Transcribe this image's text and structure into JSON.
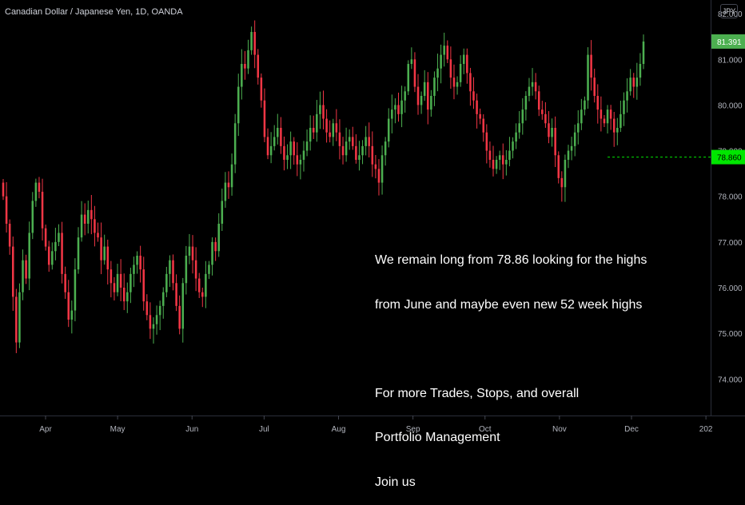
{
  "header": {
    "symbol_title": "Canadian Dollar / Japanese Yen, 1D, OANDA",
    "currency_button": "JPY"
  },
  "annotation": {
    "lines": [
      "We remain long from 78.86 looking for the highs",
      "from June and maybe even new 52 week highs",
      "",
      "For more Trades, Stops, and overall",
      "Portfolio Management",
      "Join us"
    ]
  },
  "colors": {
    "background": "#000000",
    "up": "#4caf50",
    "down": "#f23645",
    "axis_text": "#b2b5be",
    "last_price_bg": "#4caf50",
    "entry_line": "#00e600"
  },
  "chart_data": {
    "type": "candlestick",
    "title": "Canadian Dollar / Japanese Yen, 1D, OANDA",
    "ylim": [
      73.2,
      82.3
    ],
    "y_ticks": [
      "74.000",
      "75.000",
      "76.000",
      "77.000",
      "78.000",
      "79.000",
      "80.000",
      "81.000",
      "82.000"
    ],
    "x_ticks": [
      {
        "label": "Apr",
        "day": 23
      },
      {
        "label": "May",
        "day": 53
      },
      {
        "label": "Jun",
        "day": 84
      },
      {
        "label": "Jul",
        "day": 114
      },
      {
        "label": "Aug",
        "day": 145
      },
      {
        "label": "Sep",
        "day": 176
      },
      {
        "label": "Oct",
        "day": 206
      },
      {
        "label": "Nov",
        "day": 237
      },
      {
        "label": "Dec",
        "day": 267
      },
      {
        "label": "202",
        "day": 298
      }
    ],
    "last_price": "81.391",
    "entry_level": "78.860",
    "closes": [
      78,
      77.4,
      76.9,
      75.8,
      74.8,
      75.9,
      76.6,
      76.2,
      77.2,
      77.9,
      78.3,
      78.1,
      77.3,
      76.9,
      76.5,
      76.8,
      77,
      77.2,
      76.3,
      75.9,
      75.3,
      75.5,
      76.4,
      77.1,
      77.6,
      77.4,
      77.7,
      77.5,
      77.2,
      77.1,
      76.6,
      76.9,
      76.4,
      76.1,
      75.9,
      76.3,
      76,
      75.7,
      75.9,
      76.3,
      76.5,
      76.7,
      76.4,
      75.7,
      75.4,
      75.1,
      75.2,
      75.4,
      75.6,
      75.9,
      76.3,
      76.6,
      76.1,
      75.6,
      75.1,
      76.1,
      76.7,
      76.9,
      76.6,
      76.2,
      75.9,
      75.8,
      76.3,
      76.5,
      77,
      76.8,
      77.4,
      77.9,
      78.3,
      78.2,
      78.7,
      79.6,
      80.4,
      80.9,
      80.8,
      81.2,
      81.6,
      81.1,
      80.6,
      80.1,
      79.3,
      78.9,
      79.1,
      79.3,
      79.5,
      79.1,
      78.8,
      78.9,
      79.2,
      78.9,
      78.7,
      78.8,
      79,
      79.2,
      79.5,
      79.4,
      79.8,
      80,
      79.7,
      79.4,
      79.3,
      79.6,
      79.4,
      79.1,
      78.9,
      79.2,
      79.3,
      79.1,
      78.8,
      78.9,
      79.1,
      79.3,
      79.1,
      78.7,
      78.6,
      78.3,
      78.9,
      79.2,
      79.7,
      79.9,
      80,
      79.8,
      80.1,
      80.3,
      80.9,
      81,
      80.4,
      80,
      80.2,
      80.5,
      79.9,
      80.2,
      80.6,
      80.8,
      81.1,
      81.3,
      81,
      80.6,
      80.4,
      80.5,
      80.9,
      81.1,
      80.7,
      80.3,
      80.1,
      79.8,
      79.7,
      79.4,
      79,
      78.8,
      78.6,
      78.8,
      78.9,
      78.7,
      78.8,
      79,
      79.2,
      79.4,
      79.6,
      79.9,
      80.2,
      80.4,
      80.5,
      80.3,
      79.9,
      79.8,
      79.6,
      79.3,
      79.5,
      78.9,
      78.4,
      78.2,
      78.8,
      79,
      79.1,
      79.4,
      79.6,
      79.9,
      80.1,
      81.1,
      80.6,
      80.2,
      79.9,
      79.7,
      79.6,
      79.9,
      79.7,
      79.4,
      79.5,
      79.8,
      80.1,
      80.3,
      80.6,
      80.4,
      80.6,
      80.9,
      81.39
    ],
    "series": [
      {
        "name": "CADJPY",
        "values": "closes"
      }
    ]
  }
}
